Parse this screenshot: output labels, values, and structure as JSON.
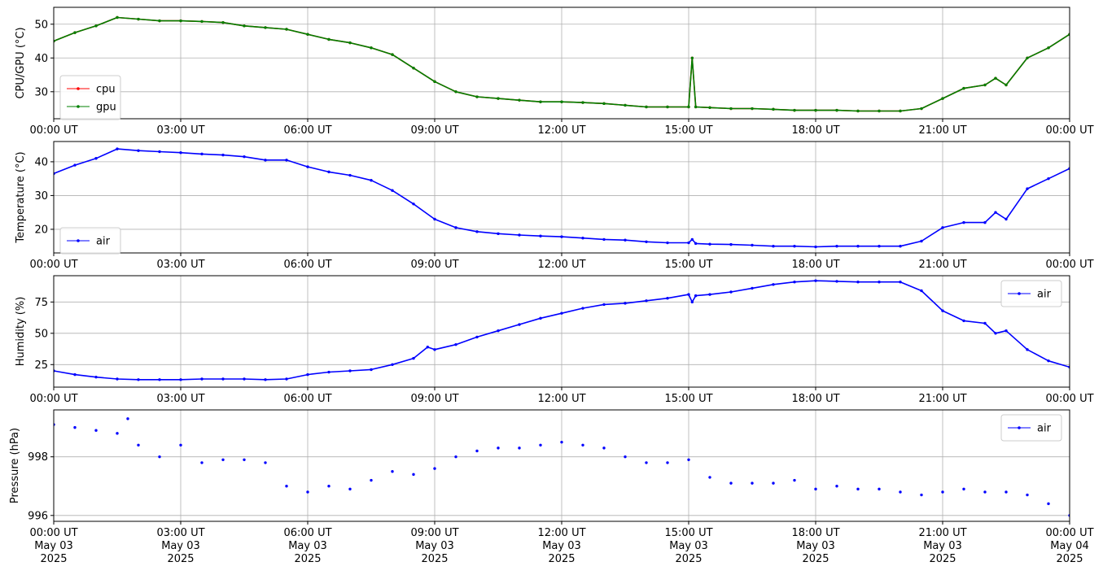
{
  "chart_data": [
    {
      "type": "line",
      "ylabel": "CPU/GPU (°C)",
      "ylim": [
        22,
        55
      ],
      "yticks": [
        30,
        40,
        50
      ],
      "legend": "lower-left",
      "colors": {
        "cpu": "#ff0000",
        "gpu": "#008000"
      },
      "x": [
        "00:00",
        "00:30",
        "01:00",
        "01:30",
        "02:00",
        "02:30",
        "03:00",
        "03:30",
        "04:00",
        "04:30",
        "05:00",
        "05:30",
        "06:00",
        "06:30",
        "07:00",
        "07:30",
        "08:00",
        "08:30",
        "09:00",
        "09:30",
        "10:00",
        "10:30",
        "11:00",
        "11:30",
        "12:00",
        "12:30",
        "13:00",
        "13:30",
        "14:00",
        "14:30",
        "15:00",
        "15:05",
        "15:10",
        "15:30",
        "16:00",
        "16:30",
        "17:00",
        "17:30",
        "18:00",
        "18:30",
        "19:00",
        "19:30",
        "20:00",
        "20:30",
        "21:00",
        "21:30",
        "22:00",
        "22:15",
        "22:30",
        "23:00",
        "23:30",
        "24:00"
      ],
      "series": [
        {
          "name": "cpu",
          "values": [
            45,
            47.5,
            49.5,
            52,
            51.5,
            51,
            51,
            50.8,
            50.5,
            49.5,
            49,
            48.5,
            47,
            45.5,
            44.5,
            43,
            41,
            37,
            33,
            30,
            28.5,
            28,
            27.5,
            27,
            27,
            26.8,
            26.5,
            26,
            25.5,
            25.5,
            25.5,
            40,
            25.5,
            25.3,
            25,
            25,
            24.8,
            24.5,
            24.5,
            24.5,
            24.3,
            24.3,
            24.3,
            25,
            28,
            31,
            32,
            34,
            32,
            40,
            43,
            47
          ]
        },
        {
          "name": "gpu",
          "values": [
            45,
            47.5,
            49.5,
            52,
            51.5,
            51,
            51,
            50.8,
            50.5,
            49.5,
            49,
            48.5,
            47,
            45.5,
            44.5,
            43,
            41,
            37,
            33,
            30,
            28.5,
            28,
            27.5,
            27,
            27,
            26.8,
            26.5,
            26,
            25.5,
            25.5,
            25.5,
            40,
            25.5,
            25.3,
            25,
            25,
            24.8,
            24.5,
            24.5,
            24.5,
            24.3,
            24.3,
            24.3,
            25,
            28,
            31,
            32,
            34,
            32,
            40,
            43,
            47
          ]
        }
      ]
    },
    {
      "type": "line",
      "ylabel": "Temperature (°C)",
      "ylim": [
        13,
        46
      ],
      "yticks": [
        20,
        30,
        40
      ],
      "legend": "lower-left",
      "colors": {
        "air": "#0000ff"
      },
      "x": [
        "00:00",
        "00:30",
        "01:00",
        "01:30",
        "02:00",
        "02:30",
        "03:00",
        "03:30",
        "04:00",
        "04:30",
        "05:00",
        "05:30",
        "06:00",
        "06:30",
        "07:00",
        "07:30",
        "08:00",
        "08:30",
        "09:00",
        "09:30",
        "10:00",
        "10:30",
        "11:00",
        "11:30",
        "12:00",
        "12:30",
        "13:00",
        "13:30",
        "14:00",
        "14:30",
        "15:00",
        "15:05",
        "15:10",
        "15:30",
        "16:00",
        "16:30",
        "17:00",
        "17:30",
        "18:00",
        "18:30",
        "19:00",
        "19:30",
        "20:00",
        "20:30",
        "21:00",
        "21:30",
        "22:00",
        "22:15",
        "22:30",
        "23:00",
        "23:30",
        "24:00"
      ],
      "series": [
        {
          "name": "air",
          "values": [
            36.5,
            39,
            41,
            43.8,
            43.3,
            43,
            42.7,
            42.3,
            42,
            41.5,
            40.5,
            40.5,
            38.5,
            37,
            36,
            34.5,
            31.5,
            27.5,
            23,
            20.5,
            19.3,
            18.7,
            18.3,
            18,
            17.8,
            17.4,
            17,
            16.8,
            16.3,
            16,
            16,
            17,
            15.8,
            15.6,
            15.5,
            15.3,
            15,
            15,
            14.8,
            15,
            15,
            15,
            15,
            16.5,
            20.5,
            22,
            22,
            25,
            23,
            32,
            35,
            38
          ]
        }
      ]
    },
    {
      "type": "line",
      "ylabel": "Humidity (%)",
      "ylim": [
        7,
        96
      ],
      "yticks": [
        25,
        50,
        75
      ],
      "legend": "top-right",
      "colors": {
        "air": "#0000ff"
      },
      "x": [
        "00:00",
        "00:30",
        "01:00",
        "01:30",
        "02:00",
        "02:30",
        "03:00",
        "03:30",
        "04:00",
        "04:30",
        "05:00",
        "05:30",
        "06:00",
        "06:30",
        "07:00",
        "07:30",
        "08:00",
        "08:30",
        "08:50",
        "09:00",
        "09:30",
        "10:00",
        "10:30",
        "11:00",
        "11:30",
        "12:00",
        "12:30",
        "13:00",
        "13:30",
        "14:00",
        "14:30",
        "15:00",
        "15:05",
        "15:10",
        "15:30",
        "16:00",
        "16:30",
        "17:00",
        "17:30",
        "18:00",
        "18:30",
        "19:00",
        "19:30",
        "20:00",
        "20:30",
        "21:00",
        "21:30",
        "22:00",
        "22:15",
        "22:30",
        "23:00",
        "23:30",
        "24:00"
      ],
      "series": [
        {
          "name": "air",
          "values": [
            20,
            17,
            15,
            13.5,
            13,
            13,
            13,
            13.5,
            13.5,
            13.5,
            13,
            13.5,
            17,
            19,
            20,
            21,
            25,
            30,
            39,
            37,
            41,
            47,
            52,
            57,
            62,
            66,
            70,
            73,
            74,
            76,
            78,
            81,
            75,
            80,
            81,
            83,
            86,
            89,
            91,
            92,
            91.5,
            91,
            91,
            91,
            84,
            68,
            60,
            58,
            50,
            52,
            37,
            28,
            23
          ]
        }
      ]
    },
    {
      "type": "scatter",
      "ylabel": "Pressure (hPa)",
      "ylim": [
        995.8,
        999.6
      ],
      "yticks": [
        996,
        998
      ],
      "legend": "top-right",
      "colors": {
        "air": "#0000ff"
      },
      "x": [
        "00:00",
        "00:30",
        "01:00",
        "01:30",
        "01:45",
        "02:00",
        "02:30",
        "03:00",
        "03:30",
        "04:00",
        "04:30",
        "05:00",
        "05:30",
        "06:00",
        "06:30",
        "07:00",
        "07:30",
        "08:00",
        "08:30",
        "09:00",
        "09:30",
        "10:00",
        "10:30",
        "11:00",
        "11:30",
        "12:00",
        "12:30",
        "13:00",
        "13:30",
        "14:00",
        "14:30",
        "15:00",
        "15:30",
        "16:00",
        "16:30",
        "17:00",
        "17:30",
        "18:00",
        "18:30",
        "19:00",
        "19:30",
        "20:00",
        "20:30",
        "21:00",
        "21:30",
        "22:00",
        "22:30",
        "23:00",
        "23:30",
        "24:00"
      ],
      "series": [
        {
          "name": "air",
          "values": [
            999.1,
            999.0,
            998.9,
            998.8,
            999.3,
            998.4,
            998.0,
            998.4,
            997.8,
            997.9,
            997.9,
            997.8,
            997.0,
            996.8,
            997.0,
            996.9,
            997.2,
            997.5,
            997.4,
            997.6,
            998.0,
            998.2,
            998.3,
            998.3,
            998.4,
            998.5,
            998.4,
            998.3,
            998.0,
            997.8,
            997.8,
            997.9,
            997.3,
            997.1,
            997.1,
            997.1,
            997.2,
            996.9,
            997.0,
            996.9,
            996.9,
            996.8,
            996.7,
            996.8,
            996.9,
            996.8,
            996.8,
            996.7,
            996.4,
            996.0
          ]
        }
      ]
    }
  ],
  "xaxis": {
    "range": [
      "00:00",
      "24:00"
    ],
    "tick_labels": [
      "00:00 UT",
      "03:00 UT",
      "06:00 UT",
      "09:00 UT",
      "12:00 UT",
      "15:00 UT",
      "18:00 UT",
      "21:00 UT",
      "00:00 UT"
    ],
    "date_lines": [
      "May 03",
      "May 03",
      "May 03",
      "May 03",
      "May 03",
      "May 03",
      "May 03",
      "May 03",
      "May 04"
    ],
    "year_lines": [
      "2025",
      "2025",
      "2025",
      "2025",
      "2025",
      "2025",
      "2025",
      "2025",
      "2025"
    ],
    "grid": true
  }
}
